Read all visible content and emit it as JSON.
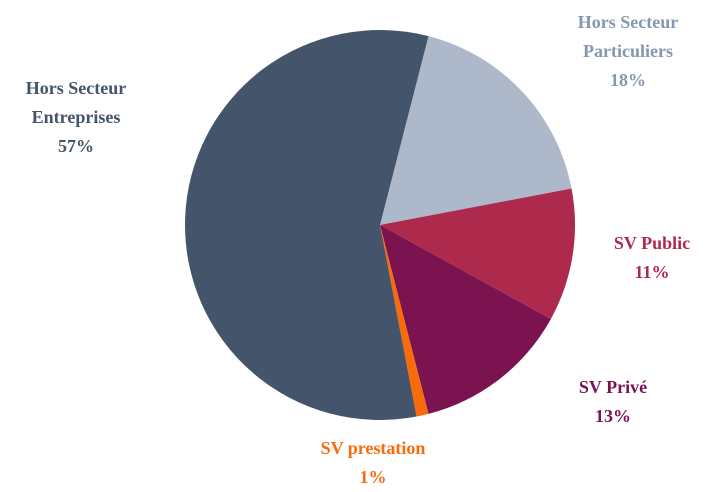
{
  "chart_data": {
    "type": "pie",
    "categories": [
      "Hors Secteur Particuliers",
      "SV Public",
      "SV Privé",
      "SV prestation",
      "Hors Secteur Entreprises"
    ],
    "values": [
      18,
      11,
      13,
      1,
      57
    ],
    "value_labels": [
      "18%",
      "11%",
      "13%",
      "1%",
      "57%"
    ],
    "colors": [
      "#adb9ca",
      "#ad2a4d",
      "#7b1350",
      "#f96a0a",
      "#44546a"
    ],
    "label_colors": [
      "#8497b0",
      "#ad2a4d",
      "#7b1350",
      "#f96a0a",
      "#44546a"
    ]
  }
}
